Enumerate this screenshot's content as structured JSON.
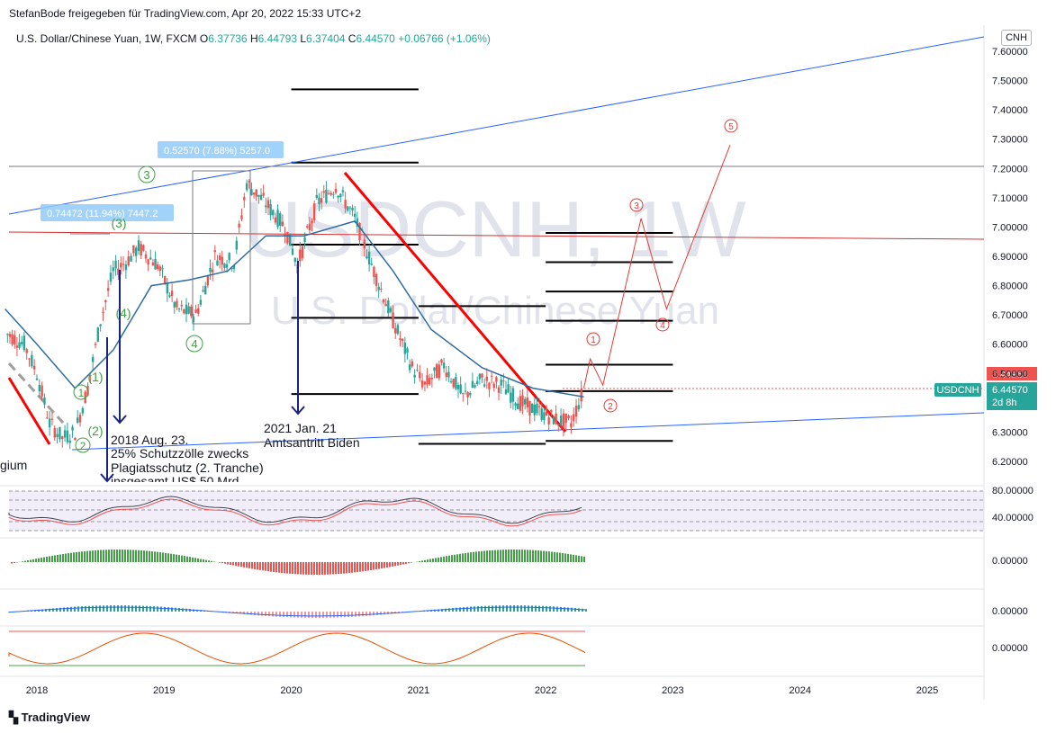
{
  "header": {
    "published": "StefanBode freigegeben für TradingView.com, Apr 20, 2022 15:33 UTC+2"
  },
  "symbol_line": {
    "title": "U.S. Dollar/Chinese Yuan, 1W, FXCM",
    "o_label": "O",
    "o_value": "6.37736",
    "h_label": "H",
    "h_value": "6.44793",
    "l_label": "L",
    "l_value": "6.37404",
    "c_label": "C",
    "c_value": "6.44570",
    "change": "+0.06766 (+1.06%)"
  },
  "currency_button": "CNH",
  "watermark": {
    "symbol": "USDCNH, 1W",
    "name": "U.S. Dollar/Chinese Yuan"
  },
  "price_tags": {
    "ticker": "USDCNH",
    "red_value": "6.44960",
    "last_value": "6.44570",
    "countdown": "2d 8h"
  },
  "measure_boxes": [
    "0.52570 (7.88%) 5257.0",
    "0.74472 (11.94%) 7447.2"
  ],
  "annotations": {
    "a2018_line1": "2018 Aug. 23.",
    "a2018_line2": "25% Schutzzölle zwecks",
    "a2018_line3": "Plagiatsschutz (2. Tranche)",
    "a2018_line4": "insgesamt  US$ 50 Mrd",
    "a2021_line1": "2021 Jan. 21",
    "a2021_line2": "Amtsantritt Biden",
    "left_cut": "gium"
  },
  "wave_labels_green": [
    "3",
    "4",
    "1",
    "2",
    "(1)",
    "(2)",
    "(3)",
    "(4)"
  ],
  "wave_labels_red": [
    "1",
    "2",
    "3",
    "4",
    "5"
  ],
  "footer": {
    "brand": "TradingView"
  },
  "colors": {
    "up": "#26a69a",
    "down": "#ef5350",
    "ma": "#2e6da4",
    "trend_red": "#ff0000",
    "channel_blue": "#2962ff",
    "wave_red": "#e53935",
    "wave_green": "#43a047"
  },
  "chart_data": {
    "type": "candlestick",
    "symbol": "USDCNH",
    "interval": "1W",
    "x_ticks": [
      "2018",
      "2019",
      "2020",
      "2021",
      "2022",
      "2023",
      "2024",
      "2025"
    ],
    "y_ticks": [
      "7.60000",
      "7.50000",
      "7.40000",
      "7.30000",
      "7.20000",
      "7.10000",
      "7.00000",
      "6.90000",
      "6.80000",
      "6.70000",
      "6.60000",
      "6.50000",
      "6.30000",
      "6.20000"
    ],
    "ylim": [
      6.13,
      7.67
    ],
    "price_path": [
      {
        "t": 2017.75,
        "p": 6.64
      },
      {
        "t": 2017.9,
        "p": 6.6
      },
      {
        "t": 2018.0,
        "p": 6.5
      },
      {
        "t": 2018.1,
        "p": 6.33
      },
      {
        "t": 2018.2,
        "p": 6.28
      },
      {
        "t": 2018.3,
        "p": 6.3
      },
      {
        "t": 2018.4,
        "p": 6.45
      },
      {
        "t": 2018.5,
        "p": 6.68
      },
      {
        "t": 2018.6,
        "p": 6.85
      },
      {
        "t": 2018.7,
        "p": 6.88
      },
      {
        "t": 2018.8,
        "p": 6.93
      },
      {
        "t": 2018.95,
        "p": 6.87
      },
      {
        "t": 2019.1,
        "p": 6.72
      },
      {
        "t": 2019.25,
        "p": 6.7
      },
      {
        "t": 2019.4,
        "p": 6.9
      },
      {
        "t": 2019.55,
        "p": 6.88
      },
      {
        "t": 2019.65,
        "p": 7.15
      },
      {
        "t": 2019.8,
        "p": 7.08
      },
      {
        "t": 2019.95,
        "p": 7.0
      },
      {
        "t": 2020.05,
        "p": 6.87
      },
      {
        "t": 2020.2,
        "p": 7.08
      },
      {
        "t": 2020.35,
        "p": 7.14
      },
      {
        "t": 2020.5,
        "p": 7.03
      },
      {
        "t": 2020.65,
        "p": 6.85
      },
      {
        "t": 2020.8,
        "p": 6.68
      },
      {
        "t": 2020.95,
        "p": 6.52
      },
      {
        "t": 2021.05,
        "p": 6.46
      },
      {
        "t": 2021.2,
        "p": 6.53
      },
      {
        "t": 2021.35,
        "p": 6.42
      },
      {
        "t": 2021.5,
        "p": 6.48
      },
      {
        "t": 2021.65,
        "p": 6.46
      },
      {
        "t": 2021.8,
        "p": 6.4
      },
      {
        "t": 2021.95,
        "p": 6.37
      },
      {
        "t": 2022.1,
        "p": 6.34
      },
      {
        "t": 2022.2,
        "p": 6.33
      },
      {
        "t": 2022.3,
        "p": 6.4457
      }
    ],
    "moving_average": [
      {
        "t": 2017.75,
        "p": 6.72
      },
      {
        "t": 2018.0,
        "p": 6.6
      },
      {
        "t": 2018.3,
        "p": 6.45
      },
      {
        "t": 2018.6,
        "p": 6.58
      },
      {
        "t": 2018.9,
        "p": 6.8
      },
      {
        "t": 2019.2,
        "p": 6.82
      },
      {
        "t": 2019.5,
        "p": 6.85
      },
      {
        "t": 2019.8,
        "p": 6.97
      },
      {
        "t": 2020.1,
        "p": 6.97
      },
      {
        "t": 2020.5,
        "p": 7.02
      },
      {
        "t": 2020.8,
        "p": 6.85
      },
      {
        "t": 2021.1,
        "p": 6.65
      },
      {
        "t": 2021.5,
        "p": 6.52
      },
      {
        "t": 2021.9,
        "p": 6.45
      },
      {
        "t": 2022.3,
        "p": 6.42
      }
    ],
    "horizontal_levels": [
      {
        "t0": 2020.0,
        "t1": 2021.0,
        "p": 7.47
      },
      {
        "t0": 2020.0,
        "t1": 2021.0,
        "p": 7.22
      },
      {
        "t0": 2020.0,
        "t1": 2021.0,
        "p": 6.94
      },
      {
        "t0": 2020.0,
        "t1": 2021.0,
        "p": 6.69
      },
      {
        "t0": 2020.0,
        "t1": 2021.0,
        "p": 6.43
      },
      {
        "t0": 2021.0,
        "t1": 2022.0,
        "p": 6.73
      },
      {
        "t0": 2021.0,
        "t1": 2022.0,
        "p": 6.26
      },
      {
        "t0": 2022.0,
        "t1": 2023.0,
        "p": 6.98
      },
      {
        "t0": 2022.0,
        "t1": 2023.0,
        "p": 6.88
      },
      {
        "t0": 2022.0,
        "t1": 2023.0,
        "p": 6.78
      },
      {
        "t0": 2022.0,
        "t1": 2023.0,
        "p": 6.68
      },
      {
        "t0": 2022.0,
        "t1": 2023.0,
        "p": 6.53
      },
      {
        "t0": 2022.0,
        "t1": 2023.0,
        "p": 6.44
      },
      {
        "t0": 2022.0,
        "t1": 2023.0,
        "p": 6.27
      }
    ],
    "projection_path": [
      {
        "t": 2022.3,
        "p": 6.45
      },
      {
        "t": 2022.35,
        "p": 6.55
      },
      {
        "t": 2022.45,
        "p": 6.46
      },
      {
        "t": 2022.75,
        "p": 7.03
      },
      {
        "t": 2022.95,
        "p": 6.72
      },
      {
        "t": 2023.45,
        "p": 7.28
      }
    ],
    "indicators": [
      "RSI",
      "MACD histogram",
      "MACD",
      "Stochastic"
    ],
    "indicator_ticks": [
      "80.00000",
      "40.00000",
      "0.00000",
      "0.00000",
      "0.00000"
    ]
  }
}
